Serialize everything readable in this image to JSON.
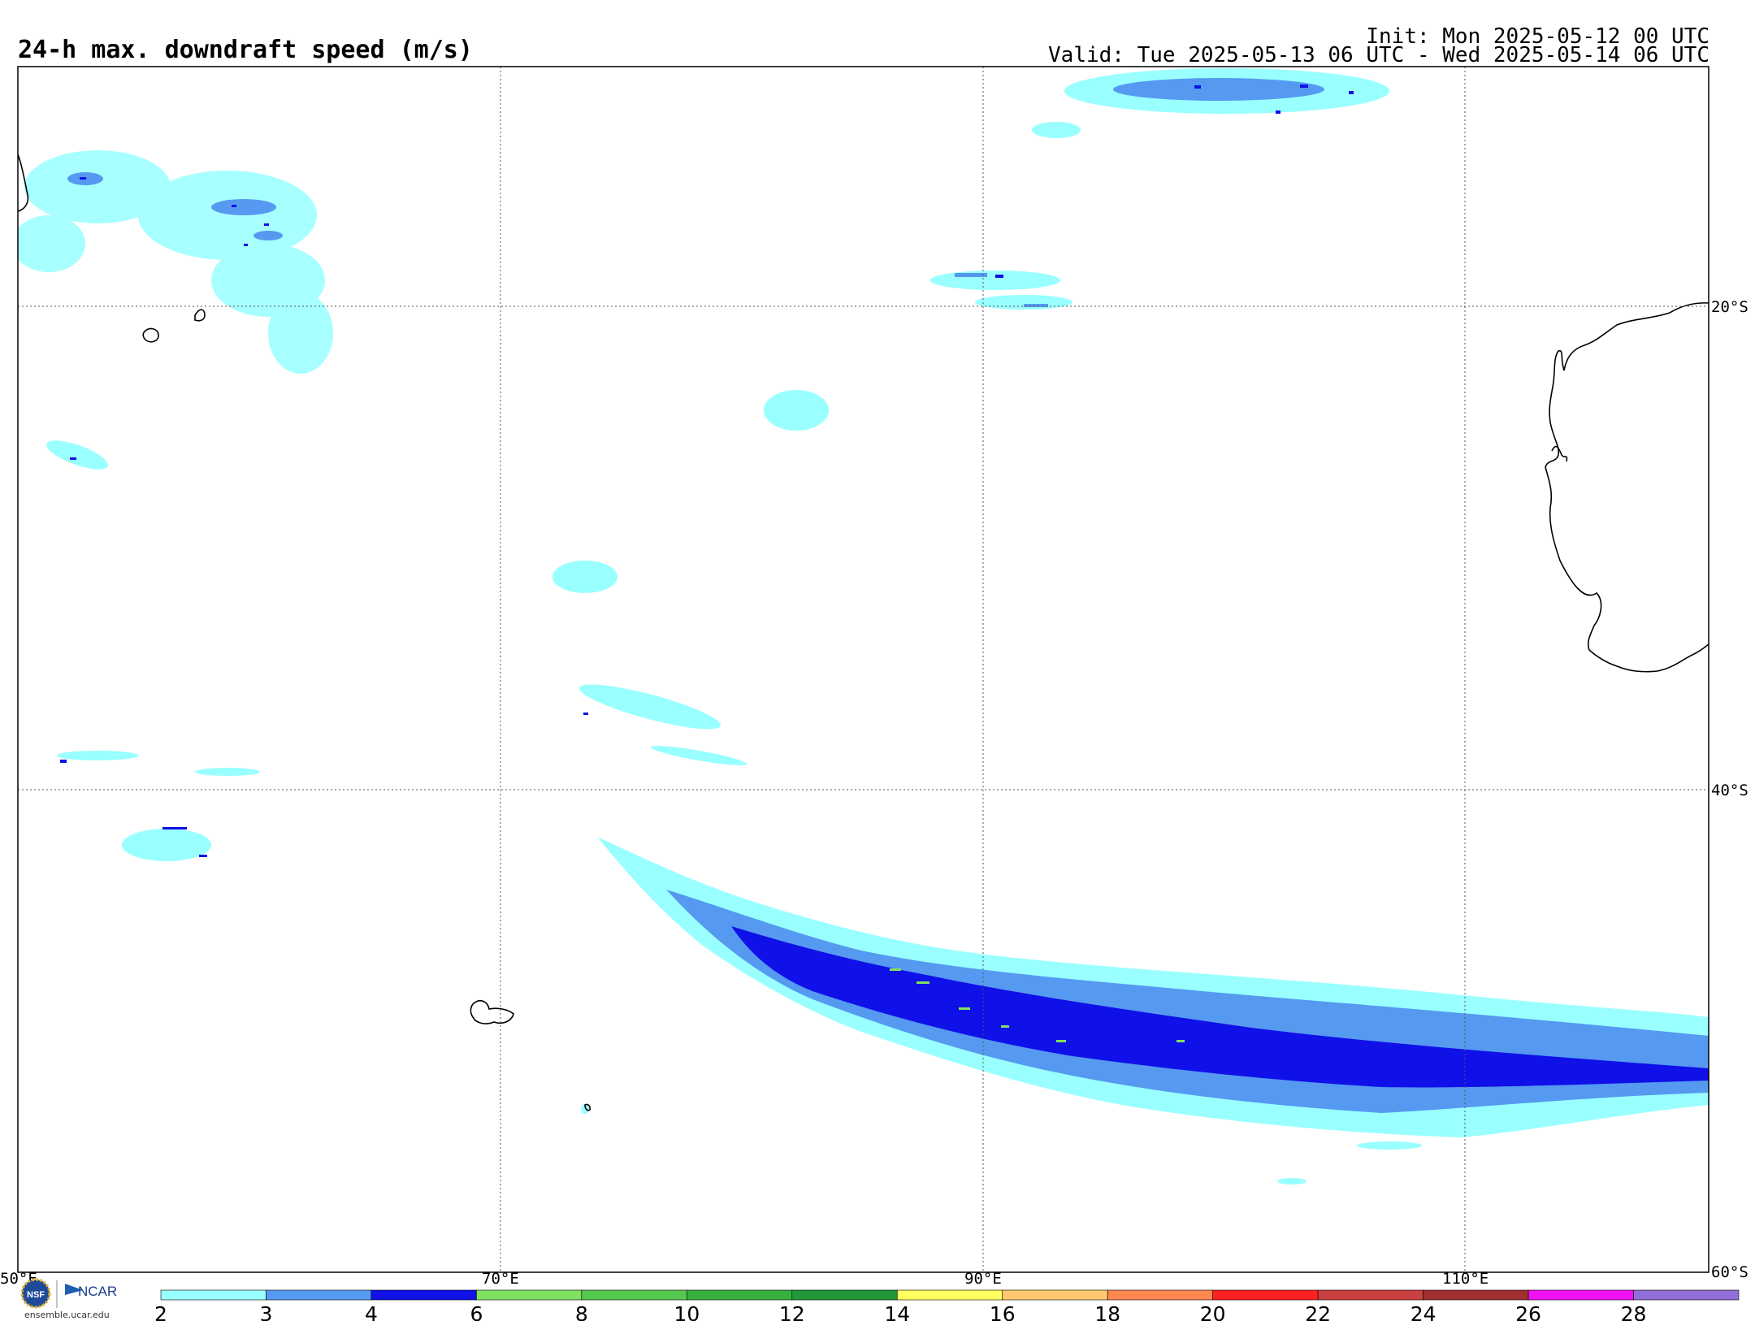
{
  "header": {
    "title": "24-h max. downdraft speed (m/s)",
    "init": "Init: Mon 2025-05-12 00 UTC",
    "valid": "Valid: Tue 2025-05-13 06 UTC - Wed 2025-05-14 06 UTC"
  },
  "map": {
    "lon_labels": [
      "50°E",
      "70°E",
      "90°E",
      "110°E"
    ],
    "lat_labels": [
      "20°S",
      "40°S",
      "60°S"
    ]
  },
  "colorbar": {
    "ticks": [
      "2",
      "3",
      "4",
      "6",
      "8",
      "10",
      "12",
      "14",
      "16",
      "18",
      "20",
      "22",
      "24",
      "26",
      "28"
    ],
    "colors": [
      "#99ffff",
      "#5599f0",
      "#1010e8",
      "#80e060",
      "#55c850",
      "#38b040",
      "#209838",
      "#ffff60",
      "#ffc870",
      "#ff8850",
      "#ff2020",
      "#c84040",
      "#a03030",
      "#f010f0",
      "#9070d8"
    ]
  },
  "logo": {
    "nsf": "NSF",
    "ncar": "NCAR",
    "url": "ensemble.ucar.edu"
  }
}
